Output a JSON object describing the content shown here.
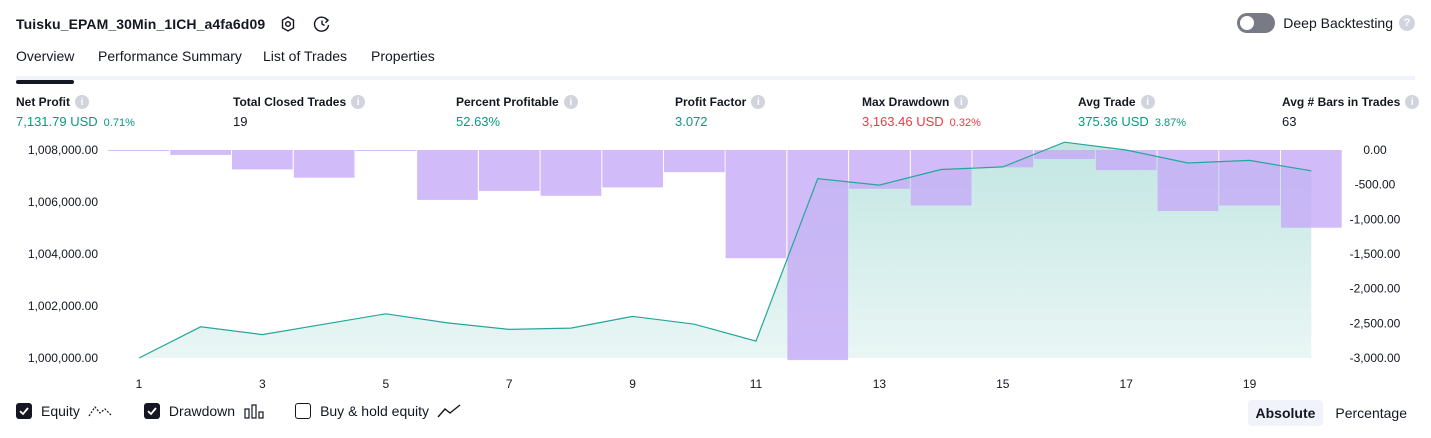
{
  "header": {
    "strategy_name": "Tuisku_EPAM_30Min_1ICH_a4fa6d09",
    "icons": [
      "settings-icon",
      "refresh-clock-icon"
    ],
    "deep_backtesting": {
      "label": "Deep Backtesting",
      "enabled": false
    }
  },
  "tabs": [
    {
      "label": "Overview",
      "active": true
    },
    {
      "label": "Performance Summary",
      "active": false
    },
    {
      "label": "List of Trades",
      "active": false
    },
    {
      "label": "Properties",
      "active": false
    }
  ],
  "metrics": [
    {
      "label": "Net Profit",
      "value": "7,131.79 USD",
      "pct": "0.71%",
      "color": "#089981"
    },
    {
      "label": "Total Closed Trades",
      "value": "19",
      "pct": "",
      "color": "#131722"
    },
    {
      "label": "Percent Profitable",
      "value": "52.63%",
      "pct": "",
      "color": "#089981"
    },
    {
      "label": "Profit Factor",
      "value": "3.072",
      "pct": "",
      "color": "#089981"
    },
    {
      "label": "Max Drawdown",
      "value": "3,163.46 USD",
      "pct": "0.32%",
      "color": "#f23645"
    },
    {
      "label": "Avg Trade",
      "value": "375.36 USD",
      "pct": "3.87%",
      "color": "#089981"
    },
    {
      "label": "Avg # Bars in Trades",
      "value": "63",
      "pct": "",
      "color": "#131722"
    }
  ],
  "chart_data": {
    "type": "line",
    "x": [
      1,
      2,
      3,
      4,
      5,
      6,
      7,
      8,
      9,
      10,
      11,
      12,
      13,
      14,
      15,
      16,
      17,
      18,
      19,
      20
    ],
    "x_tick_labels": [
      "1",
      "3",
      "5",
      "7",
      "9",
      "11",
      "13",
      "15",
      "17",
      "19"
    ],
    "y_left_ticks": [
      "1,008,000.00",
      "1,006,000.00",
      "1,004,000.00",
      "1,002,000.00",
      "1,000,000.00"
    ],
    "y_left_range": [
      1000000,
      1008000
    ],
    "y_right_ticks": [
      "0.00",
      "-500.00",
      "-1,000.00",
      "-1,500.00",
      "-2,000.00",
      "-2,500.00",
      "-3,000.00"
    ],
    "y_right_range": [
      -3000,
      0
    ],
    "series": [
      {
        "name": "Equity",
        "kind": "area",
        "color": "#26a69a",
        "values": [
          1000000,
          1001200,
          1000900,
          1001300,
          1001700,
          1001350,
          1001100,
          1001150,
          1001600,
          1001300,
          1000650,
          1006900,
          1006650,
          1007250,
          1007350,
          1008300,
          1008000,
          1007500,
          1007600,
          1007200
        ]
      },
      {
        "name": "Drawdown",
        "kind": "bar",
        "color": "#c5a8f7",
        "values": [
          0,
          -70,
          -280,
          -400,
          -10,
          -720,
          -590,
          -660,
          -540,
          -320,
          -1560,
          -3030,
          -560,
          -800,
          -250,
          -130,
          -290,
          -880,
          -800,
          -1120
        ]
      }
    ]
  },
  "legend": {
    "items": [
      {
        "label": "Equity",
        "checked": true,
        "icon": "equity-line-icon"
      },
      {
        "label": "Drawdown",
        "checked": true,
        "icon": "drawdown-bars-icon"
      },
      {
        "label": "Buy & hold equity",
        "checked": false,
        "icon": "buy-hold-line-icon"
      }
    ]
  },
  "modes": [
    {
      "label": "Absolute",
      "active": true
    },
    {
      "label": "Percentage",
      "active": false
    }
  ]
}
